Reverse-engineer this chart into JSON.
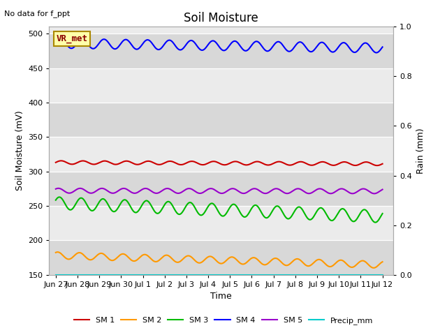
{
  "title": "Soil Moisture",
  "no_data_text": "No data for f_ppt",
  "vr_met_label": "VR_met",
  "xlabel": "Time",
  "ylabel_left": "Soil Moisture (mV)",
  "ylabel_right": "Rain (mm)",
  "ylim_left": [
    150,
    510
  ],
  "ylim_right": [
    0.0,
    1.0
  ],
  "yticks_left": [
    150,
    200,
    250,
    300,
    350,
    400,
    450,
    500
  ],
  "yticks_right": [
    0.0,
    0.2,
    0.4,
    0.6,
    0.8,
    1.0
  ],
  "xtick_labels": [
    "Jun 27",
    "Jun 28",
    "Jun 29",
    "Jun 30",
    "Jul 1",
    "Jul 2",
    "Jul 3",
    "Jul 4",
    "Jul 5",
    "Jul 6",
    "Jul 7",
    "Jul 8",
    "Jul 9",
    "Jul 10",
    "Jul 11",
    "Jul 12"
  ],
  "xtick_positions": [
    0,
    1,
    2,
    3,
    4,
    5,
    6,
    7,
    8,
    9,
    10,
    11,
    12,
    13,
    14,
    15
  ],
  "bg_band_light": "#ebebeb",
  "bg_band_dark": "#d8d8d8",
  "fig_facecolor": "#ffffff",
  "lines": {
    "SM1": {
      "color": "#cc0000",
      "base": 313,
      "amplitude": 2.5,
      "trend": -0.13,
      "freq": 1.0,
      "phase": 0.0,
      "label": "SM 1"
    },
    "SM2": {
      "color": "#ff9900",
      "base": 178,
      "amplitude": 5,
      "trend": -0.9,
      "freq": 1.0,
      "phase": 1.0,
      "label": "SM 2"
    },
    "SM3": {
      "color": "#00bb00",
      "base": 254,
      "amplitude": 9,
      "trend": -1.3,
      "freq": 1.0,
      "phase": 0.5,
      "label": "SM 3"
    },
    "SM4": {
      "color": "#0000ff",
      "base": 486,
      "amplitude": 7,
      "trend": -0.45,
      "freq": 1.0,
      "phase": 0.2,
      "label": "SM 4"
    },
    "SM5": {
      "color": "#9900cc",
      "base": 272,
      "amplitude": 3.5,
      "trend": -0.05,
      "freq": 1.0,
      "phase": 0.8,
      "label": "SM 5"
    },
    "Precip": {
      "color": "#00cccc",
      "base": 150,
      "amplitude": 0,
      "trend": 0,
      "freq": 0,
      "phase": 0,
      "label": "Precip_mm"
    }
  },
  "legend_order": [
    "SM1",
    "SM2",
    "SM3",
    "SM4",
    "SM5",
    "Precip"
  ]
}
